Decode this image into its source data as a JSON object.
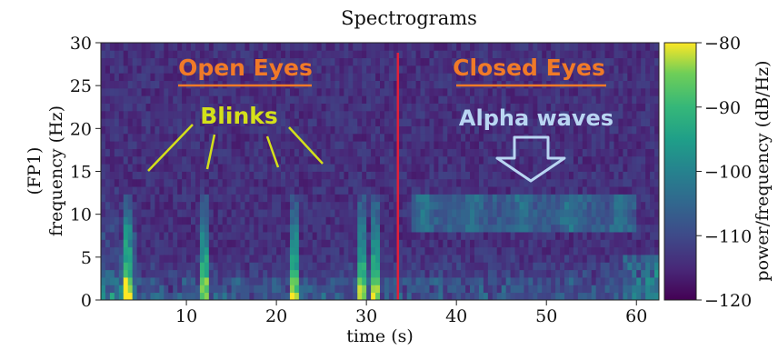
{
  "chart_data": {
    "type": "heatmap",
    "title": "Spectrograms",
    "xlabel": "time (s)",
    "ylabel_lines": [
      "(FP1)",
      "frequency (Hz)"
    ],
    "x_ticks": [
      10,
      20,
      30,
      40,
      50,
      60
    ],
    "y_ticks": [
      0,
      5,
      10,
      15,
      20,
      25,
      30
    ],
    "xlim": [
      0.5,
      62.5
    ],
    "ylim": [
      0,
      30
    ],
    "grid": false,
    "colorbar": {
      "label": "power/frequency (dB/Hz)",
      "ticks": [
        -80,
        -90,
        -100,
        -110,
        -120
      ],
      "range": [
        -120,
        -80
      ],
      "colormap": "viridis"
    },
    "divider_x": 33.5,
    "divider_color": "#e0203a",
    "annotations": {
      "open_eyes": "Open Eyes",
      "closed_eyes": "Closed Eyes",
      "blinks": "Blinks",
      "alpha_waves": "Alpha waves"
    },
    "blink_times": [
      3.5,
      12,
      22,
      29.5,
      31
    ],
    "alpha_band_hz": [
      8,
      12
    ],
    "colors": {
      "open_closed_label": "#f07a28",
      "blinks_label": "#d4e01a",
      "alpha_label": "#b9d6f2"
    }
  }
}
